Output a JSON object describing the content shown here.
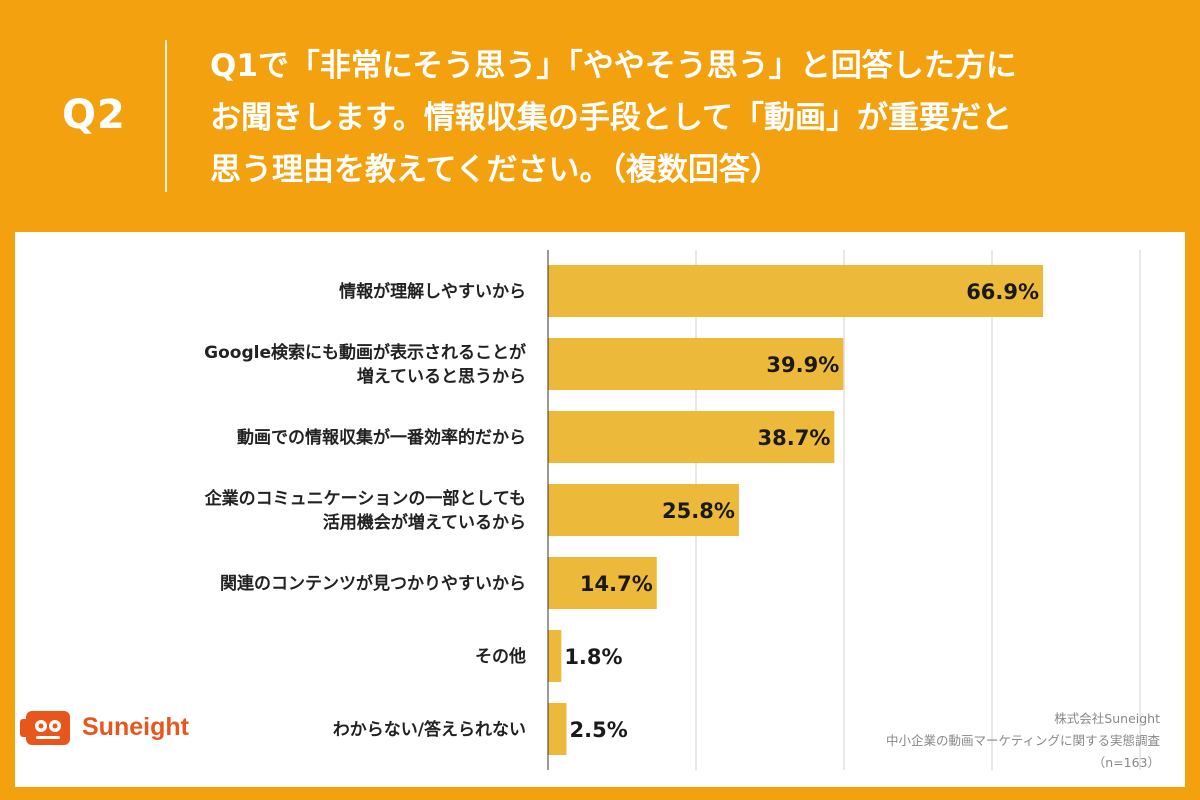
{
  "header": {
    "question_number": "Q2",
    "question_lines": [
      "Q1で「非常にそう思う」「ややそう思う」と回答した方に",
      "お聞きします。情報収集の手段として「動画」が重要だと",
      "思う理由を教えてください。（複数回答）"
    ]
  },
  "logo": {
    "name": "Suneight"
  },
  "credit": {
    "company": "株式会社Suneight",
    "survey": "中小企業の動画マーケティングに関する実態調査",
    "sample": "（n=163）"
  },
  "colors": {
    "background": "#F3A10F",
    "bar": "#EDB93A",
    "grid": "#D0D0D0",
    "logo": "#E8561E"
  },
  "chart_data": {
    "type": "bar",
    "orientation": "horizontal",
    "categories": [
      [
        "情報が理解しやすいから"
      ],
      [
        "Google検索にも動画が表示されることが",
        "増えていると思うから"
      ],
      [
        "動画での情報収集が一番効率的だから"
      ],
      [
        "企業のコミュニケーションの一部としても",
        "活用機会が増えているから"
      ],
      [
        "関連のコンテンツが見つかりやすいから"
      ],
      [
        "その他"
      ],
      [
        "わからない/答えられない"
      ]
    ],
    "values": [
      66.9,
      39.9,
      38.7,
      25.8,
      14.7,
      1.8,
      2.5
    ],
    "value_labels": [
      "66.9%",
      "39.9%",
      "38.7%",
      "25.8%",
      "14.7%",
      "1.8%",
      "2.5%"
    ],
    "xlim": [
      0,
      80
    ],
    "grid": true
  }
}
